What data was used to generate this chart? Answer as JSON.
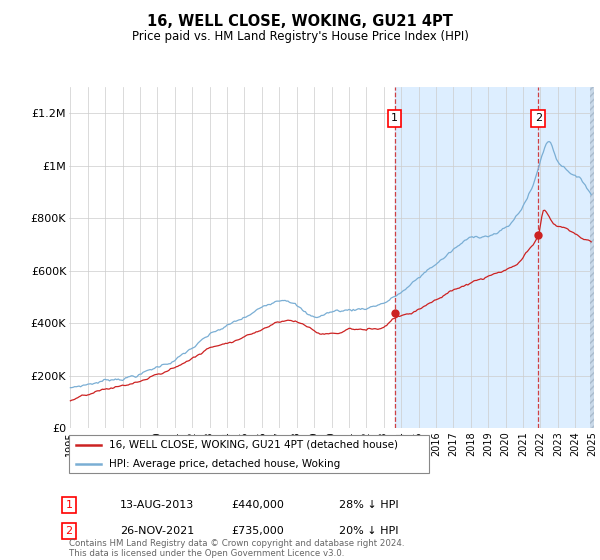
{
  "title": "16, WELL CLOSE, WOKING, GU21 4PT",
  "subtitle": "Price paid vs. HM Land Registry's House Price Index (HPI)",
  "ylim": [
    0,
    1300000
  ],
  "yticks": [
    0,
    200000,
    400000,
    600000,
    800000,
    1000000,
    1200000
  ],
  "ytick_labels": [
    "£0",
    "£200K",
    "£400K",
    "£600K",
    "£800K",
    "£1M",
    "£1.2M"
  ],
  "sale1_date": "13-AUG-2013",
  "sale1_price": 440000,
  "sale1_year": 2013.625,
  "sale1_pct": "28% ↓ HPI",
  "sale2_date": "26-NOV-2021",
  "sale2_price": 735000,
  "sale2_year": 2021.875,
  "sale2_pct": "20% ↓ HPI",
  "legend1": "16, WELL CLOSE, WOKING, GU21 4PT (detached house)",
  "legend2": "HPI: Average price, detached house, Woking",
  "footer": "Contains HM Land Registry data © Crown copyright and database right 2024.\nThis data is licensed under the Open Government Licence v3.0.",
  "hpi_color": "#7aaed4",
  "price_color": "#cc2222",
  "shade_color": "#ddeeff"
}
